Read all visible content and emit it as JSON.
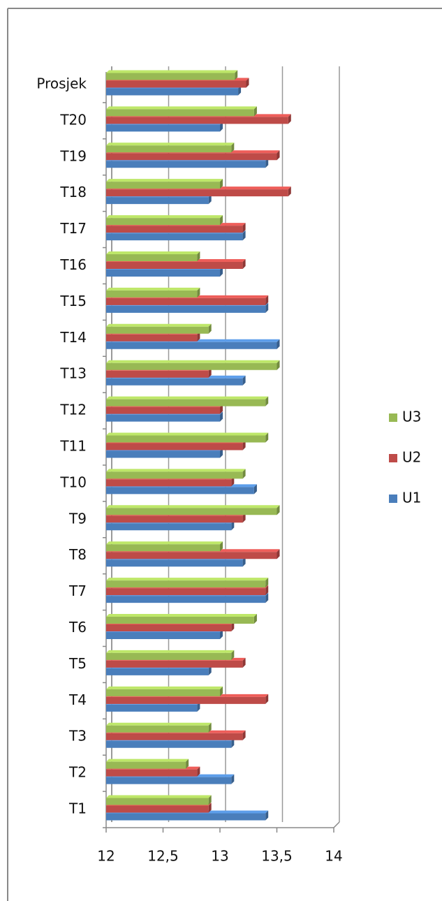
{
  "chart_data": {
    "type": "bar",
    "orientation": "horizontal",
    "categories": [
      "T1",
      "T2",
      "T3",
      "T4",
      "T5",
      "T6",
      "T7",
      "T8",
      "T9",
      "T10",
      "T11",
      "T12",
      "T13",
      "T14",
      "T15",
      "T16",
      "T17",
      "T18",
      "T19",
      "T20",
      "Prosjek"
    ],
    "series": [
      {
        "name": "U1",
        "color": "#4a7ebb",
        "values": [
          13.4,
          13.1,
          13.1,
          12.8,
          12.9,
          13.0,
          13.4,
          13.2,
          13.1,
          13.3,
          13.0,
          13.0,
          13.2,
          13.5,
          13.4,
          13.0,
          13.2,
          12.9,
          13.4,
          13.0,
          13.16
        ]
      },
      {
        "name": "U2",
        "color": "#be4b48",
        "values": [
          12.9,
          12.8,
          13.2,
          13.4,
          13.2,
          13.1,
          13.4,
          13.5,
          13.2,
          13.1,
          13.2,
          13.0,
          12.9,
          12.8,
          13.4,
          13.2,
          13.2,
          13.6,
          13.5,
          13.6,
          13.23
        ]
      },
      {
        "name": "U3",
        "color": "#98b954",
        "values": [
          12.9,
          12.7,
          12.9,
          13.0,
          13.1,
          13.3,
          13.4,
          13.0,
          13.5,
          13.2,
          13.4,
          13.4,
          13.5,
          12.9,
          12.8,
          12.8,
          13.0,
          13.0,
          13.1,
          13.3,
          13.13
        ]
      }
    ],
    "xlim": [
      12,
      14
    ],
    "xticks": [
      12,
      {
        "value": 12.5,
        "label": "12,5"
      },
      13,
      {
        "value": 13.5,
        "label": "13,5"
      },
      14
    ],
    "grid": true,
    "legend": "right"
  }
}
